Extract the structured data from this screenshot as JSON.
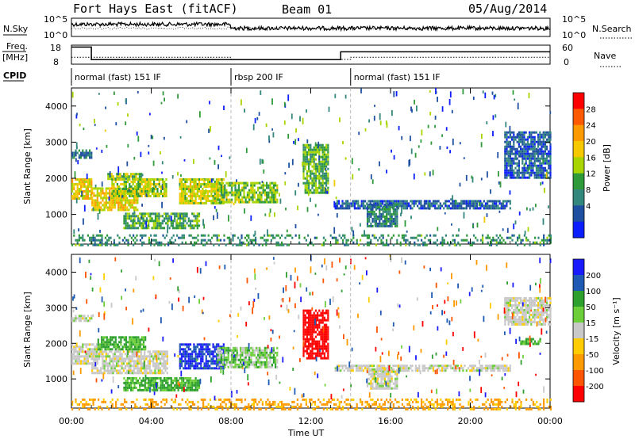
{
  "header": {
    "station": "Fort Hays East (fitACF)",
    "beam": "Beam 01",
    "date": "05/Aug/2014"
  },
  "noise": {
    "left_label": "N.Sky",
    "right_label": "N.Search",
    "left_ticks": [
      "10^5",
      "10^0"
    ],
    "right_ticks": [
      "10^5",
      "10^0"
    ]
  },
  "freq": {
    "left_label_1": "Freq.",
    "left_label_2": "[MHz]",
    "right_label": "Nave",
    "left_ticks": [
      "18",
      "8"
    ],
    "right_ticks": [
      "60",
      "0"
    ]
  },
  "cpid": {
    "label": "CPID",
    "segments": [
      {
        "label": "normal (fast) 151 IF",
        "start_hour": 0.0
      },
      {
        "label": "rbsp 200 IF",
        "start_hour": 8.0
      },
      {
        "label": "normal (fast) 151 IF",
        "start_hour": 14.0
      }
    ]
  },
  "power_panel": {
    "ylabel": "Slant Range [km]",
    "cbar_label": "Power [dB]",
    "cbar_ticks": [
      "28",
      "24",
      "20",
      "16",
      "12",
      "8",
      "4"
    ],
    "cbar_colors": [
      "#ff0000",
      "#ff5a00",
      "#ff9900",
      "#f5c800",
      "#a8d400",
      "#2f9a3a",
      "#33877d",
      "#1e4fa0",
      "#0a1eff"
    ]
  },
  "velocity_panel": {
    "ylabel": "Slant Range [km]",
    "cbar_label": "Velocity [m s⁻¹]",
    "cbar_ticks": [
      "200",
      "100",
      "50",
      "15",
      "-15",
      "-50",
      "-100",
      "-200"
    ],
    "cbar_colors": [
      "#1a1aff",
      "#1e5ab4",
      "#2da02d",
      "#6ccf3a",
      "#c8c8c8",
      "#ffcc00",
      "#ff9900",
      "#ff5500",
      "#ff0000"
    ]
  },
  "xaxis": {
    "label": "Time UT",
    "ticks": [
      "00:00",
      "04:00",
      "08:00",
      "12:00",
      "16:00",
      "20:00",
      "00:00"
    ]
  },
  "chart_data": {
    "type": "heatmap",
    "panels": [
      {
        "name": "Power",
        "y_ticks": [
          "1000",
          "2000",
          "3000",
          "4000"
        ],
        "ylim": [
          180,
          4500
        ],
        "xlim_hours": [
          0,
          24
        ],
        "blobs": [
          {
            "t0": 0.0,
            "t1": 1.0,
            "r0": 1450,
            "r1": 2000,
            "level": 0.62
          },
          {
            "t0": 0.0,
            "t1": 1.0,
            "r0": 2600,
            "r1": 2800,
            "level": 0.25
          },
          {
            "t0": 1.0,
            "t1": 3.3,
            "r0": 1150,
            "r1": 1750,
            "level": 0.6
          },
          {
            "t0": 1.8,
            "t1": 3.5,
            "r0": 2000,
            "r1": 2150,
            "level": 0.45
          },
          {
            "t0": 2.0,
            "t1": 4.8,
            "r0": 1500,
            "r1": 2000,
            "level": 0.5
          },
          {
            "t0": 2.6,
            "t1": 6.4,
            "r0": 650,
            "r1": 1050,
            "level": 0.35
          },
          {
            "t0": 5.4,
            "t1": 7.6,
            "r0": 1300,
            "r1": 2000,
            "level": 0.55
          },
          {
            "t0": 7.3,
            "t1": 10.3,
            "r0": 1350,
            "r1": 1900,
            "level": 0.45
          },
          {
            "t0": 11.6,
            "t1": 12.9,
            "r0": 1600,
            "r1": 2950,
            "level": 0.4
          },
          {
            "t0": 13.2,
            "t1": 22.0,
            "r0": 1200,
            "r1": 1400,
            "level": 0.15
          },
          {
            "t0": 14.8,
            "t1": 16.3,
            "r0": 700,
            "r1": 1300,
            "level": 0.25
          },
          {
            "t0": 21.7,
            "t1": 24.0,
            "r0": 2000,
            "r1": 3300,
            "level": 0.15
          },
          {
            "t0": 0.0,
            "t1": 24.0,
            "r0": 180,
            "r1": 450,
            "level": 0.3
          }
        ]
      },
      {
        "name": "Velocity",
        "y_ticks": [
          "1000",
          "2000",
          "3000",
          "4000"
        ],
        "ylim": [
          180,
          4500
        ],
        "xlim_hours": [
          0,
          24
        ],
        "blobs": [
          {
            "t0": 0.0,
            "t1": 1.3,
            "r0": 1450,
            "r1": 2000,
            "value": 0
          },
          {
            "t0": 0.0,
            "t1": 1.0,
            "r0": 2600,
            "r1": 2800,
            "value": 0
          },
          {
            "t0": 1.3,
            "t1": 3.7,
            "r0": 1800,
            "r1": 2200,
            "value": 40
          },
          {
            "t0": 1.0,
            "t1": 4.8,
            "r0": 1150,
            "r1": 1800,
            "value": 0
          },
          {
            "t0": 2.6,
            "t1": 6.4,
            "r0": 650,
            "r1": 1050,
            "value": 40
          },
          {
            "t0": 5.4,
            "t1": 7.6,
            "r0": 1300,
            "r1": 2000,
            "value": 150
          },
          {
            "t0": 7.3,
            "t1": 10.3,
            "r0": 1350,
            "r1": 1900,
            "value": 20
          },
          {
            "t0": 11.6,
            "t1": 12.9,
            "r0": 1600,
            "r1": 2950,
            "value": -220
          },
          {
            "t0": 13.2,
            "t1": 22.0,
            "r0": 1200,
            "r1": 1400,
            "value": 0
          },
          {
            "t0": 14.8,
            "t1": 16.3,
            "r0": 700,
            "r1": 1300,
            "value": 0
          },
          {
            "t0": 21.7,
            "t1": 24.0,
            "r0": 2500,
            "r1": 3300,
            "value": 0
          },
          {
            "t0": 22.5,
            "t1": 23.5,
            "r0": 1950,
            "r1": 2150,
            "value": 40
          },
          {
            "t0": 0.0,
            "t1": 24.0,
            "r0": 180,
            "r1": 450,
            "value": -40
          }
        ]
      }
    ],
    "noise_sky_level": 0.45,
    "freq_series": [
      {
        "t0": 0.0,
        "t1": 1.0,
        "value": 17.0
      },
      {
        "t0": 1.0,
        "t1": 13.5,
        "value": 10.4
      },
      {
        "t0": 13.5,
        "t1": 24.0,
        "value": 14.5
      }
    ],
    "nave_series": [
      {
        "t0": 0.0,
        "t1": 8.0,
        "value": 22
      },
      {
        "t0": 8.0,
        "t1": 14.0,
        "value": 15
      },
      {
        "t0": 14.0,
        "t1": 24.0,
        "value": 22
      }
    ]
  }
}
